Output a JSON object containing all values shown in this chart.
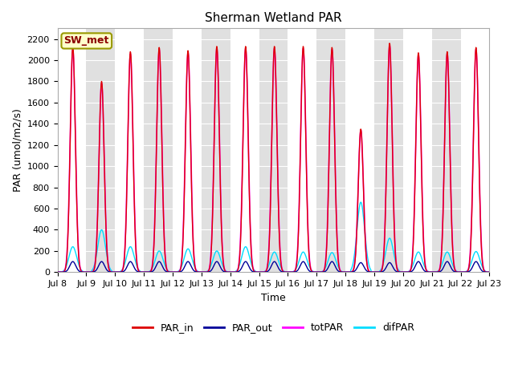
{
  "title": "Sherman Wetland PAR",
  "xlabel": "Time",
  "ylabel": "PAR (umol/m2/s)",
  "ylim": [
    0,
    2300
  ],
  "yticks": [
    0,
    200,
    400,
    600,
    800,
    1000,
    1200,
    1400,
    1600,
    1800,
    2000,
    2200
  ],
  "par_in_color": "#dd0000",
  "par_out_color": "#000099",
  "tot_par_color": "#ff00ff",
  "dif_par_color": "#00ddff",
  "legend_label": "SW_met",
  "legend_bg": "#ffffcc",
  "legend_border": "#999900",
  "par_in_peaks": [
    2130,
    1800,
    2080,
    2120,
    2090,
    2130,
    2130,
    2130,
    2130,
    2120,
    1350,
    2160,
    2070,
    2080,
    2120
  ],
  "tot_par_peaks": [
    2100,
    1780,
    2060,
    2100,
    2070,
    2110,
    2110,
    2110,
    2110,
    2100,
    1340,
    2140,
    2050,
    2060,
    2100
  ],
  "par_out_peaks": [
    100,
    100,
    100,
    100,
    100,
    100,
    100,
    100,
    100,
    100,
    90,
    90,
    100,
    100,
    100
  ],
  "dif_par_peaks": [
    240,
    400,
    240,
    200,
    220,
    200,
    240,
    190,
    190,
    185,
    660,
    320,
    190,
    190,
    195
  ],
  "title_fontsize": 11,
  "label_fontsize": 9,
  "tick_fontsize": 8
}
